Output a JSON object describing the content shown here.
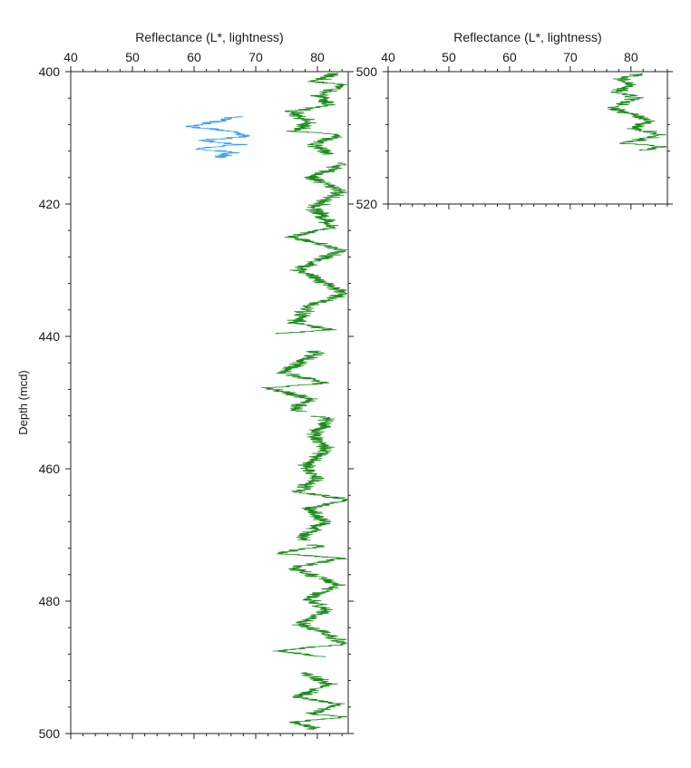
{
  "chart_data": [
    {
      "type": "line",
      "title": "Reflectance (L*, lightness)",
      "xlabel": "Reflectance (L*, lightness)",
      "ylabel": "Depth (mcd)",
      "xlim": [
        40,
        85
      ],
      "ylim": [
        400,
        500
      ],
      "y_inverted": true,
      "x_ticks": [
        40,
        50,
        60,
        70,
        80
      ],
      "y_ticks": [
        400,
        420,
        440,
        460,
        480,
        500
      ],
      "grid": false,
      "series": [
        {
          "color": "#1a8a1a",
          "depth_start": 400.2,
          "depth_end": 499.4,
          "segments": [
            [
              400.2,
              412.5
            ],
            [
              413.8,
              439.6
            ],
            [
              442.2,
              451.4
            ],
            [
              452.0,
              470.8
            ],
            [
              471.5,
              488.4
            ],
            [
              490.8,
              499.4
            ]
          ],
          "anchors": [
            {
              "x": 83.0,
              "y": 400.2
            },
            {
              "x": 79.5,
              "y": 401.5
            },
            {
              "x": 84.5,
              "y": 402.0
            },
            {
              "x": 80.0,
              "y": 403.5
            },
            {
              "x": 82.0,
              "y": 405.0
            },
            {
              "x": 76.0,
              "y": 406.0
            },
            {
              "x": 78.5,
              "y": 407.5
            },
            {
              "x": 76.5,
              "y": 409.0
            },
            {
              "x": 84.0,
              "y": 409.5
            },
            {
              "x": 79.0,
              "y": 411.0
            },
            {
              "x": 81.5,
              "y": 412.0
            },
            {
              "x": 84.0,
              "y": 414.0
            },
            {
              "x": 79.0,
              "y": 416.0
            },
            {
              "x": 84.0,
              "y": 418.0
            },
            {
              "x": 79.5,
              "y": 420.5
            },
            {
              "x": 82.5,
              "y": 423.5
            },
            {
              "x": 76.0,
              "y": 425.0
            },
            {
              "x": 84.5,
              "y": 427.0
            },
            {
              "x": 80.0,
              "y": 428.5
            },
            {
              "x": 77.0,
              "y": 430.0
            },
            {
              "x": 81.5,
              "y": 432.0
            },
            {
              "x": 84.5,
              "y": 433.5
            },
            {
              "x": 78.5,
              "y": 435.5
            },
            {
              "x": 76.5,
              "y": 438.0
            },
            {
              "x": 82.5,
              "y": 439.0
            },
            {
              "x": 72.5,
              "y": 439.6
            },
            {
              "x": 80.0,
              "y": 442.5
            },
            {
              "x": 77.0,
              "y": 444.0
            },
            {
              "x": 74.5,
              "y": 445.5
            },
            {
              "x": 81.5,
              "y": 447.0
            },
            {
              "x": 72.0,
              "y": 447.8
            },
            {
              "x": 79.0,
              "y": 449.5
            },
            {
              "x": 76.0,
              "y": 451.0
            },
            {
              "x": 82.0,
              "y": 452.5
            },
            {
              "x": 79.5,
              "y": 455.0
            },
            {
              "x": 81.5,
              "y": 457.0
            },
            {
              "x": 78.0,
              "y": 459.5
            },
            {
              "x": 80.0,
              "y": 461.5
            },
            {
              "x": 77.0,
              "y": 463.5
            },
            {
              "x": 85.0,
              "y": 464.7
            },
            {
              "x": 78.5,
              "y": 466.0
            },
            {
              "x": 81.0,
              "y": 468.0
            },
            {
              "x": 77.5,
              "y": 470.5
            },
            {
              "x": 80.0,
              "y": 471.8
            },
            {
              "x": 73.0,
              "y": 472.8
            },
            {
              "x": 84.0,
              "y": 473.5
            },
            {
              "x": 76.0,
              "y": 475.0
            },
            {
              "x": 83.5,
              "y": 477.5
            },
            {
              "x": 78.5,
              "y": 479.5
            },
            {
              "x": 81.5,
              "y": 481.5
            },
            {
              "x": 77.0,
              "y": 483.5
            },
            {
              "x": 80.5,
              "y": 484.5
            },
            {
              "x": 84.5,
              "y": 486.5
            },
            {
              "x": 74.0,
              "y": 487.5
            },
            {
              "x": 80.5,
              "y": 488.4
            },
            {
              "x": 78.0,
              "y": 491.0
            },
            {
              "x": 82.0,
              "y": 492.5
            },
            {
              "x": 76.5,
              "y": 494.5
            },
            {
              "x": 83.5,
              "y": 495.5
            },
            {
              "x": 79.0,
              "y": 497.0
            },
            {
              "x": 84.5,
              "y": 497.5
            },
            {
              "x": 76.0,
              "y": 498.3
            },
            {
              "x": 80.0,
              "y": 499.4
            }
          ]
        },
        {
          "color": "#3399ff",
          "depth_start": 406.8,
          "depth_end": 413.0,
          "anchors": [
            {
              "x": 67.0,
              "y": 406.8
            },
            {
              "x": 63.5,
              "y": 407.6
            },
            {
              "x": 59.0,
              "y": 408.3
            },
            {
              "x": 66.5,
              "y": 409.0
            },
            {
              "x": 68.5,
              "y": 409.8
            },
            {
              "x": 61.0,
              "y": 410.4
            },
            {
              "x": 67.5,
              "y": 411.0
            },
            {
              "x": 60.5,
              "y": 411.6
            },
            {
              "x": 66.0,
              "y": 412.2
            },
            {
              "x": 63.5,
              "y": 413.0
            }
          ]
        }
      ]
    },
    {
      "type": "line",
      "title": "Reflectance (L*, lightness)",
      "xlabel": "Reflectance (L*, lightness)",
      "xlim": [
        40,
        86
      ],
      "ylim": [
        500,
        520
      ],
      "y_inverted": true,
      "x_ticks": [
        40,
        50,
        60,
        70,
        80
      ],
      "y_ticks": [
        500,
        520
      ],
      "grid": false,
      "series": [
        {
          "color": "#1a8a1a",
          "depth_start": 500.3,
          "depth_end": 511.9,
          "anchors": [
            {
              "x": 82.0,
              "y": 500.3
            },
            {
              "x": 78.0,
              "y": 501.0
            },
            {
              "x": 80.0,
              "y": 502.0
            },
            {
              "x": 77.5,
              "y": 503.0
            },
            {
              "x": 81.0,
              "y": 504.0
            },
            {
              "x": 76.5,
              "y": 505.5
            },
            {
              "x": 80.5,
              "y": 506.5
            },
            {
              "x": 83.0,
              "y": 507.5
            },
            {
              "x": 80.0,
              "y": 508.5
            },
            {
              "x": 85.0,
              "y": 509.5
            },
            {
              "x": 81.5,
              "y": 510.3
            },
            {
              "x": 78.5,
              "y": 510.8
            },
            {
              "x": 85.5,
              "y": 511.3
            },
            {
              "x": 82.0,
              "y": 511.9
            }
          ]
        }
      ]
    }
  ]
}
